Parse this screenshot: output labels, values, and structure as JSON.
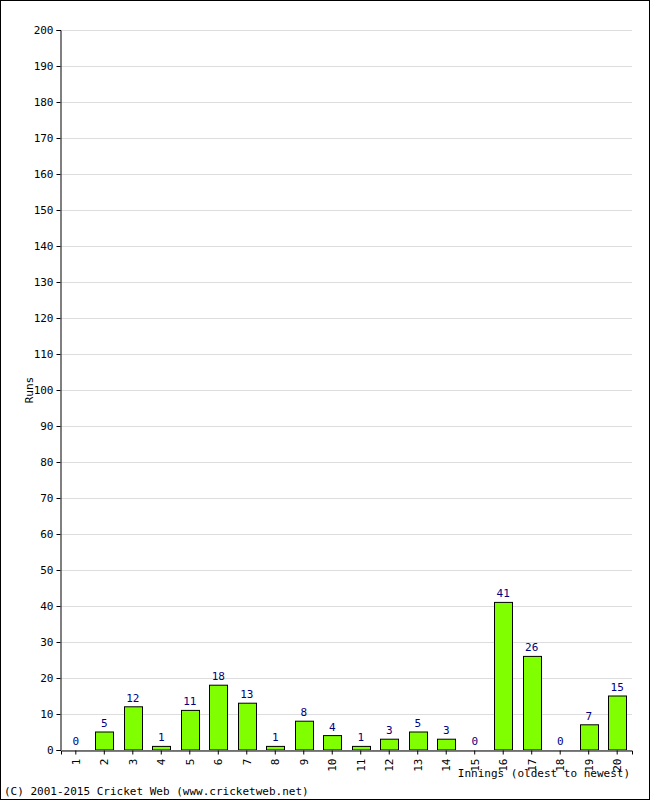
{
  "chart_data": {
    "type": "bar",
    "categories": [
      "1",
      "2",
      "3",
      "4",
      "5",
      "6",
      "7",
      "8",
      "9",
      "10",
      "11",
      "12",
      "13",
      "14",
      "15",
      "16",
      "17",
      "18",
      "19",
      "20"
    ],
    "values": [
      0,
      5,
      12,
      1,
      11,
      18,
      13,
      1,
      8,
      4,
      1,
      3,
      5,
      3,
      0,
      41,
      26,
      0,
      7,
      15
    ],
    "color": "#7fff00",
    "x_label": "Innings (oldest to newest)",
    "y_label": "Runs",
    "annotations": [
      "(C) 2001-2015 Cricket Web (www.cricketweb.net)"
    ],
    "ylim": [
      0,
      200
    ],
    "yticks": [
      0,
      10,
      20,
      30,
      40,
      50,
      60,
      70,
      80,
      90,
      100,
      110,
      120,
      130,
      140,
      150,
      160,
      170,
      180,
      190,
      200
    ],
    "grid": true,
    "data_labels": true
  }
}
